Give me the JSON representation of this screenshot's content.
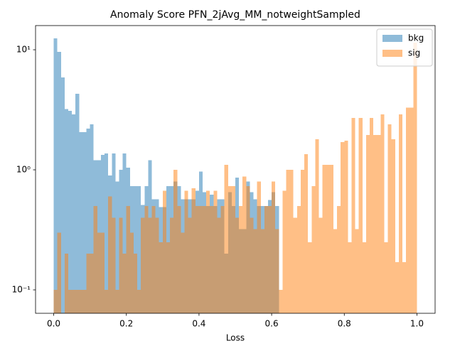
{
  "chart_data": {
    "type": "histogram",
    "title": "Anomaly Score PFN_2jAvg_MM_notweightSampled",
    "x_label": "Loss",
    "bins": [
      0,
      0.01,
      0.02,
      0.03,
      0.04,
      0.05,
      0.06,
      0.07,
      0.08,
      0.09,
      0.1,
      0.11,
      0.12,
      0.13,
      0.14,
      0.15,
      0.16,
      0.17,
      0.18,
      0.19,
      0.2,
      0.21,
      0.22,
      0.23,
      0.24,
      0.25,
      0.26,
      0.27,
      0.28,
      0.29,
      0.3,
      0.31,
      0.32,
      0.33,
      0.34,
      0.35,
      0.36,
      0.37,
      0.38,
      0.39,
      0.4,
      0.41,
      0.42,
      0.43,
      0.44,
      0.45,
      0.46,
      0.47,
      0.48,
      0.49,
      0.5,
      0.51,
      0.52,
      0.53,
      0.54,
      0.55,
      0.56,
      0.57,
      0.58,
      0.59,
      0.6,
      0.61,
      0.62,
      0.63,
      0.64,
      0.65,
      0.66,
      0.67,
      0.68,
      0.69,
      0.7,
      0.71,
      0.72,
      0.73,
      0.74,
      0.75,
      0.76,
      0.77,
      0.78,
      0.79,
      0.8,
      0.81,
      0.82,
      0.83,
      0.84,
      0.85,
      0.86,
      0.87,
      0.88,
      0.89,
      0.9,
      0.91,
      0.92,
      0.93,
      0.94,
      0.95,
      0.96,
      0.97,
      0.98,
      0.99,
      1
    ],
    "series": [
      {
        "name": "bkg",
        "color": "#1f77b4",
        "values": [
          12.4,
          9.6,
          5.9,
          3.2,
          3.1,
          2.9,
          4.3,
          2.06,
          2.06,
          2.2,
          2.4,
          1.2,
          1.2,
          1.33,
          1.37,
          0.9,
          1.37,
          0.8,
          1.0,
          1.37,
          1.04,
          0.73,
          0.73,
          0.73,
          0.51,
          0.73,
          1.2,
          0.57,
          0.57,
          0.49,
          0.49,
          0.73,
          0.73,
          0.8,
          0.73,
          0.57,
          0.57,
          0.57,
          0.57,
          0.67,
          0.97,
          0.65,
          0.5,
          0.62,
          0.5,
          0.57,
          0.57,
          0.2,
          0.65,
          0.5,
          0.86,
          0.32,
          0.32,
          0.8,
          0.65,
          0.57,
          0.5,
          0.5,
          0.5,
          0.56,
          0.65,
          0.5,
          0,
          0,
          0,
          0,
          0,
          0,
          0,
          0,
          0,
          0,
          0,
          0,
          0,
          0,
          0,
          0,
          0,
          0,
          0,
          0,
          0,
          0,
          0,
          0,
          0,
          0,
          0,
          0,
          0,
          0,
          0,
          0,
          0,
          0,
          0,
          0,
          0,
          0
        ]
      },
      {
        "name": "sig",
        "color": "#ff7f0e",
        "values": [
          0.1,
          0.3,
          0,
          0.2,
          0.1,
          0.1,
          0.1,
          0.1,
          0.1,
          0.2,
          0.2,
          0.5,
          0.3,
          0.3,
          0.1,
          0.6,
          0.4,
          0.1,
          0.4,
          0.2,
          0.5,
          0.3,
          0.2,
          0.1,
          0.4,
          0.5,
          0.4,
          0.5,
          0.4,
          0.25,
          0.67,
          0.25,
          0.4,
          1.0,
          0.5,
          0.3,
          0.67,
          0.4,
          0.7,
          0.5,
          0.5,
          0.5,
          0.67,
          0.5,
          0.67,
          0.4,
          0.5,
          1.1,
          0.73,
          0.73,
          0.4,
          0.5,
          0.88,
          0.73,
          0.4,
          0.32,
          0.8,
          0.32,
          0.5,
          0.5,
          0.8,
          0.32,
          0.1,
          0.67,
          1.0,
          1.0,
          0.4,
          0.5,
          1.0,
          1.35,
          0.25,
          0.73,
          1.8,
          0.4,
          1.1,
          1.1,
          1.1,
          0.32,
          0.5,
          1.7,
          1.75,
          0.25,
          2.7,
          0.32,
          2.7,
          0.25,
          1.95,
          2.7,
          1.95,
          1.95,
          2.9,
          0.25,
          2.4,
          1.8,
          0.17,
          2.9,
          0.17,
          3.3,
          3.3,
          11.5
        ]
      }
    ],
    "alpha": 0.5,
    "log_y": true,
    "legend": "upper right",
    "xlim": [
      -0.05,
      1.05
    ],
    "ylim": [
      0.0638,
      15.9
    ],
    "xticks": [
      {
        "value": 0,
        "label": "0.0"
      },
      0.2,
      0.4,
      0.6,
      0.8,
      {
        "value": 1,
        "label": "1.0"
      }
    ],
    "yticks": [
      {
        "value": 0.1,
        "label": "10⁻¹"
      },
      {
        "value": 1,
        "label": "10⁰"
      },
      {
        "value": 10,
        "label": "10¹"
      }
    ]
  }
}
